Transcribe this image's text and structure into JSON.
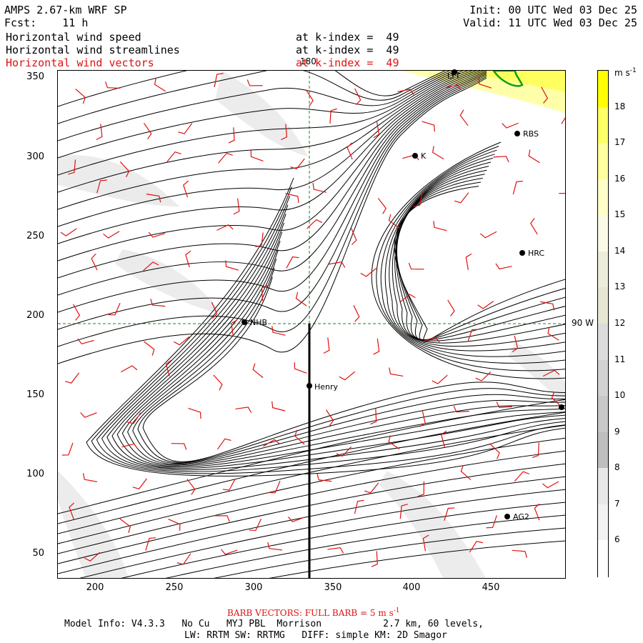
{
  "header": {
    "title": "AMPS 2.67-km WRF SP",
    "fcst_label": "Fcst:",
    "fcst_value": "11 h",
    "init": "Init: 00 UTC Wed 03 Dec 25",
    "valid": "Valid: 11 UTC Wed 03 Dec 25",
    "fields": [
      {
        "name": "Horizontal wind speed",
        "level": "at k-index =  49"
      },
      {
        "name": "Horizontal wind streamlines",
        "level": "at k-index =  49"
      },
      {
        "name": "Horizontal wind vectors",
        "level": "at k-index =  49"
      }
    ]
  },
  "map": {
    "x_ticks": [
      "200",
      "250",
      "300",
      "350",
      "400",
      "450"
    ],
    "y_ticks": [
      "350",
      "300",
      "250",
      "200",
      "150",
      "100",
      "50"
    ],
    "meridian_label": "180",
    "lon_label": "90 W",
    "stations": [
      {
        "name": "LYT"
      },
      {
        "name": "RBS"
      },
      {
        "name": "K"
      },
      {
        "name": "HRC"
      },
      {
        "name": "NHB"
      },
      {
        "name": "Henry"
      },
      {
        "name": "AG2"
      },
      {
        "name": ""
      }
    ],
    "line_color": "#000000",
    "vector_color": "#e01010"
  },
  "colorbar": {
    "unit": "m s",
    "unit_sup": "-1",
    "levels": [
      "18",
      "17",
      "16",
      "15",
      "14",
      "13",
      "12",
      "11",
      "10",
      "9",
      "8",
      "7",
      "6"
    ],
    "colors": [
      "#ffff00",
      "#ffff66",
      "#ffffa0",
      "#ffffc8",
      "#fafae6",
      "#ededdc",
      "#e6e6d2",
      "#dcdcdc",
      "#d2d2d2",
      "#c8c8c8",
      "#bebebe",
      "#e8e8e8",
      "#f2f2f2",
      "#ffffff"
    ]
  },
  "footer": {
    "barb_text": "BARB VECTORS: FULL BARB = 5 m s",
    "barb_sup": "-1",
    "model_info": "Model Info: V4.3.3   No Cu   MYJ PBL  Morrison           2.7 km, 60 levels,",
    "model_info2": "LW: RRTM SW: RRTMG   DIFF: simple KM: 2D Smagor"
  }
}
